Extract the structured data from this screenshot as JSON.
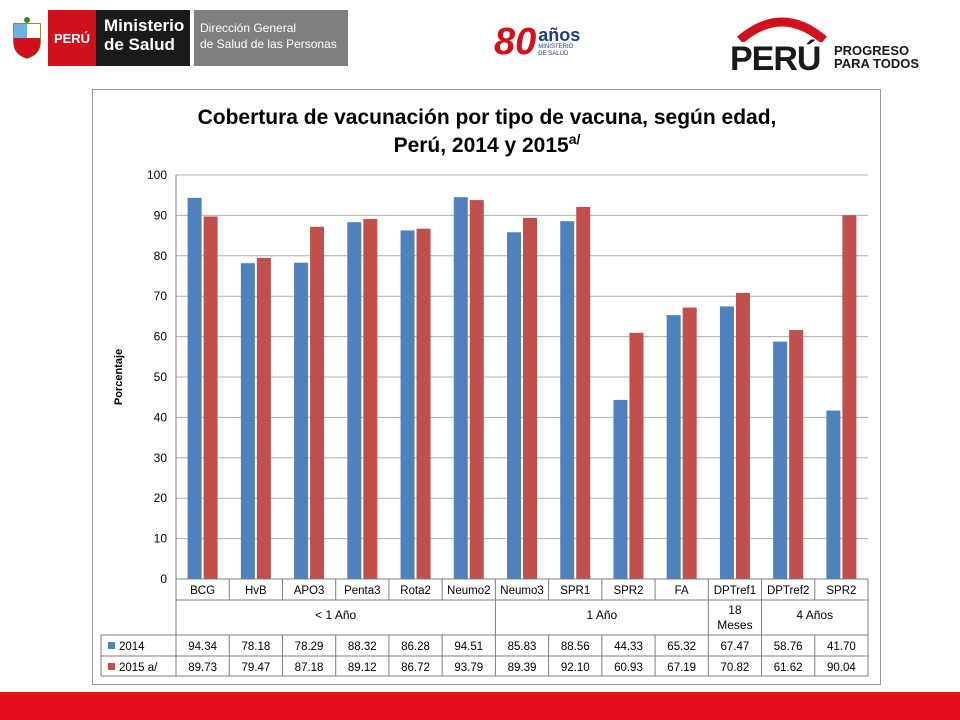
{
  "header": {
    "peru_label": "PERÚ",
    "ministerio": "Ministerio de Salud",
    "direccion_line1": "Dirección General",
    "direccion_line2": "de Salud de las Personas",
    "aniversario_num": "80",
    "aniversario_anos": "años",
    "aniversario_sub1": "MINISTERIO",
    "aniversario_sub2": "DE SALUD",
    "peru_word": "PERÚ",
    "peru_tag_line1": "PROGRESO",
    "peru_tag_line2": "PARA TODOS"
  },
  "colors": {
    "series_2014": "#4f81bd",
    "series_2015": "#c0504d",
    "accent_red": "#e3101b"
  },
  "chart_data": {
    "type": "bar",
    "title_line1": "Cobertura de vacunación por tipo de vacuna, según edad,",
    "title_line2": "Perú, 2014 y 2015",
    "title_superscript": "a/",
    "ylabel": "Porcentaje",
    "ylim": [
      0,
      100
    ],
    "yticks": [
      0,
      10,
      20,
      30,
      40,
      50,
      60,
      70,
      80,
      90,
      100
    ],
    "grid": true,
    "categories": [
      "BCG",
      "HvB",
      "APO3",
      "Penta3",
      "Rota2",
      "Neumo2",
      "Neumo3",
      "SPR1",
      "SPR2",
      "FA",
      "DPTref1",
      "DPTref2",
      "SPR2"
    ],
    "groups": [
      {
        "label": "< 1 Año",
        "span": 6
      },
      {
        "label": "1 Año",
        "span": 4
      },
      {
        "label": "18 Meses",
        "span": 1
      },
      {
        "label": "4 Años",
        "span": 2
      }
    ],
    "series": [
      {
        "name": "2014",
        "values": [
          94.34,
          78.18,
          78.29,
          88.32,
          86.28,
          94.51,
          85.83,
          88.56,
          44.33,
          65.32,
          67.47,
          58.76,
          41.7
        ]
      },
      {
        "name": "2015 a/",
        "values": [
          89.73,
          79.47,
          87.18,
          89.12,
          86.72,
          93.79,
          89.39,
          92.1,
          60.93,
          67.19,
          70.82,
          61.62,
          90.04
        ]
      }
    ]
  }
}
